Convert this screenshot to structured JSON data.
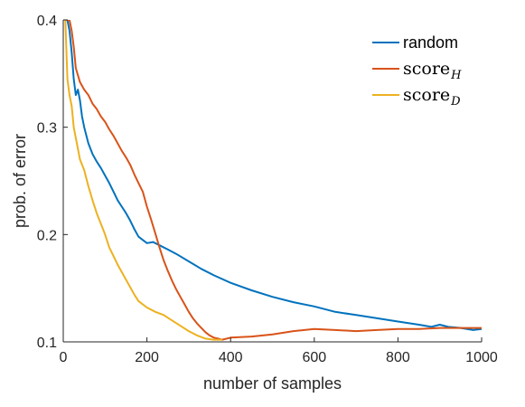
{
  "chart_data": {
    "type": "line",
    "title": "",
    "xlabel": "number of samples",
    "ylabel": "prob. of error",
    "xlim": [
      0,
      1000
    ],
    "ylim": [
      0.1,
      0.4
    ],
    "xticks": [
      0,
      200,
      400,
      600,
      800,
      1000
    ],
    "xtick_labels": [
      "0",
      "200",
      "400",
      "600",
      "800",
      "1000"
    ],
    "yticks": [
      0.1,
      0.2,
      0.3,
      0.4
    ],
    "ytick_labels": [
      "0.1",
      "0.2",
      "0.3",
      "0.4"
    ],
    "grid": false,
    "legend_position": "top-right",
    "series": [
      {
        "name": "random",
        "color": "#0072BD",
        "x": [
          10,
          15,
          20,
          25,
          30,
          35,
          40,
          45,
          50,
          60,
          70,
          80,
          90,
          100,
          110,
          120,
          130,
          140,
          150,
          160,
          170,
          180,
          190,
          200,
          215,
          230,
          250,
          270,
          300,
          330,
          360,
          400,
          450,
          500,
          550,
          600,
          650,
          700,
          750,
          800,
          850,
          880,
          900,
          920,
          950,
          980,
          1000
        ],
        "y": [
          0.4,
          0.39,
          0.37,
          0.345,
          0.33,
          0.335,
          0.325,
          0.31,
          0.3,
          0.285,
          0.275,
          0.268,
          0.262,
          0.255,
          0.248,
          0.24,
          0.232,
          0.226,
          0.22,
          0.213,
          0.205,
          0.198,
          0.195,
          0.192,
          0.193,
          0.19,
          0.186,
          0.182,
          0.175,
          0.168,
          0.162,
          0.155,
          0.148,
          0.142,
          0.137,
          0.133,
          0.128,
          0.125,
          0.122,
          0.119,
          0.116,
          0.114,
          0.116,
          0.114,
          0.113,
          0.111,
          0.112
        ]
      },
      {
        "name": "score",
        "subscript": "H",
        "color": "#D95319",
        "x": [
          5,
          10,
          15,
          20,
          25,
          30,
          40,
          50,
          60,
          70,
          80,
          90,
          100,
          110,
          120,
          130,
          140,
          150,
          160,
          170,
          180,
          190,
          200,
          210,
          220,
          230,
          240,
          250,
          260,
          270,
          280,
          290,
          300,
          310,
          320,
          330,
          340,
          350,
          360,
          370,
          380,
          400,
          450,
          500,
          550,
          600,
          650,
          700,
          750,
          800,
          850,
          900,
          950,
          1000
        ],
        "y": [
          0.4,
          0.4,
          0.4,
          0.39,
          0.375,
          0.355,
          0.342,
          0.335,
          0.33,
          0.322,
          0.317,
          0.31,
          0.305,
          0.298,
          0.292,
          0.285,
          0.278,
          0.272,
          0.265,
          0.256,
          0.248,
          0.24,
          0.226,
          0.214,
          0.201,
          0.188,
          0.176,
          0.166,
          0.157,
          0.149,
          0.142,
          0.135,
          0.128,
          0.122,
          0.117,
          0.113,
          0.109,
          0.106,
          0.104,
          0.103,
          0.102,
          0.104,
          0.105,
          0.107,
          0.11,
          0.112,
          0.111,
          0.11,
          0.111,
          0.112,
          0.112,
          0.113,
          0.113,
          0.113
        ]
      },
      {
        "name": "score",
        "subscript": "D",
        "color": "#EDB120",
        "x": [
          5,
          10,
          15,
          20,
          25,
          30,
          35,
          40,
          50,
          60,
          70,
          80,
          90,
          100,
          110,
          120,
          130,
          140,
          150,
          160,
          170,
          180,
          200,
          220,
          240,
          260,
          280,
          300,
          320,
          340,
          360,
          380
        ],
        "y": [
          0.4,
          0.345,
          0.33,
          0.32,
          0.3,
          0.29,
          0.28,
          0.27,
          0.26,
          0.245,
          0.232,
          0.22,
          0.21,
          0.2,
          0.188,
          0.18,
          0.172,
          0.165,
          0.158,
          0.151,
          0.144,
          0.138,
          0.132,
          0.128,
          0.125,
          0.12,
          0.115,
          0.11,
          0.106,
          0.103,
          0.102,
          0.102
        ]
      }
    ]
  }
}
